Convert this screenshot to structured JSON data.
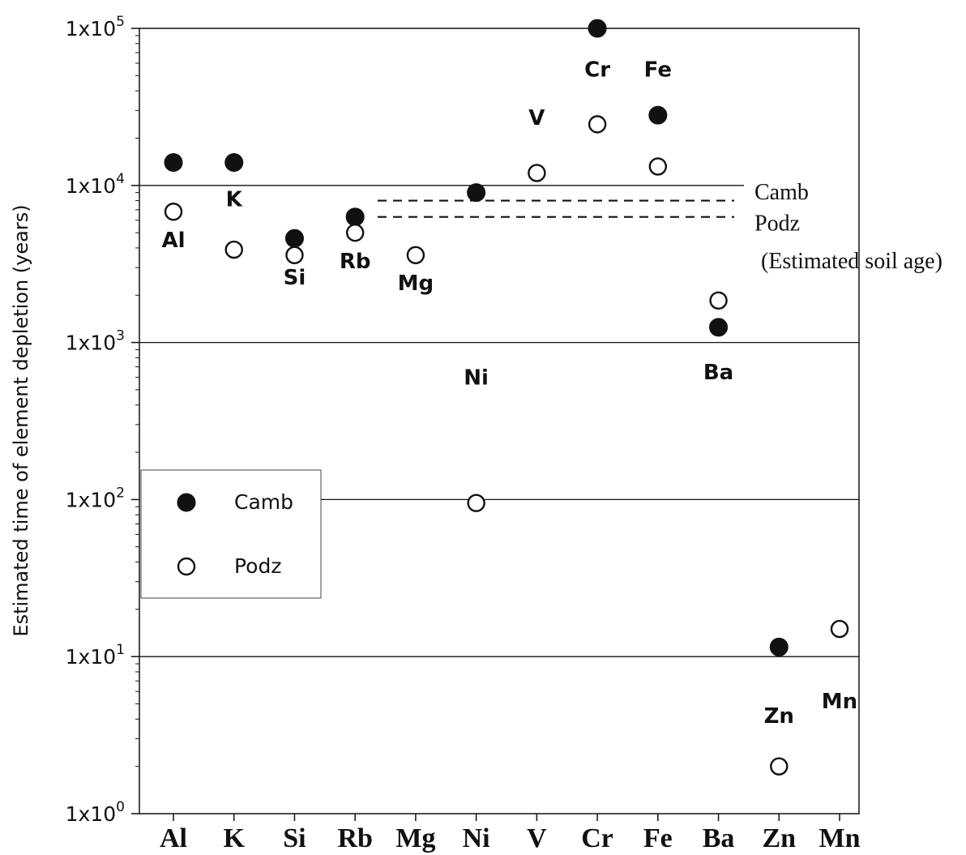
{
  "chart_data": {
    "type": "scatter",
    "ylabel": "Estimated time of element depletion (years)",
    "xlabel": "",
    "yscale": "log",
    "ylim": [
      1,
      100000
    ],
    "yticks": [
      {
        "value": 1,
        "base": "1x10",
        "exp": "0"
      },
      {
        "value": 10,
        "base": "1x10",
        "exp": "1"
      },
      {
        "value": 100,
        "base": "1x10",
        "exp": "2"
      },
      {
        "value": 1000,
        "base": "1x10",
        "exp": "3"
      },
      {
        "value": 10000,
        "base": "1x10",
        "exp": "4"
      },
      {
        "value": 100000,
        "base": "1x10",
        "exp": "5"
      }
    ],
    "categories": [
      "Al",
      "K",
      "Si",
      "Rb",
      "Mg",
      "Ni",
      "V",
      "Cr",
      "Fe",
      "Ba",
      "Zn",
      "Mn"
    ],
    "series": [
      {
        "name": "Camb",
        "marker": "filled",
        "values": [
          14000,
          14000,
          4600,
          6300,
          null,
          9000,
          null,
          100000,
          28000,
          1250,
          11.5,
          null
        ]
      },
      {
        "name": "Podz",
        "marker": "open",
        "values": [
          6800,
          3900,
          3600,
          5000,
          3600,
          95,
          12000,
          24500,
          13200,
          1850,
          2,
          15
        ]
      }
    ],
    "point_labels": [
      {
        "text": "Al",
        "category": "Al",
        "value": 4500
      },
      {
        "text": "K",
        "category": "K",
        "value": 8200
      },
      {
        "text": "Si",
        "category": "Si",
        "value": 2600
      },
      {
        "text": "Rb",
        "category": "Rb",
        "value": 3300
      },
      {
        "text": "Mg",
        "category": "Mg",
        "value": 2400
      },
      {
        "text": "Ni",
        "category": "Ni",
        "value": 600
      },
      {
        "text": "V",
        "category": "V",
        "value": 27000
      },
      {
        "text": "Cr",
        "category": "Cr",
        "value": 55000
      },
      {
        "text": "Fe",
        "category": "Fe",
        "value": 55000
      },
      {
        "text": "Ba",
        "category": "Ba",
        "value": 650
      },
      {
        "text": "Zn",
        "category": "Zn",
        "value": 4.2
      },
      {
        "text": "Mn",
        "category": "Mn",
        "value": 5.2
      }
    ],
    "reference_lines": [
      {
        "label": "Camb",
        "value": 8000,
        "style": "dashed"
      },
      {
        "label": "Podz",
        "value": 6300,
        "style": "dashed"
      }
    ],
    "reference_note": "(Estimated soil age)",
    "grid": "horizontal at major ticks",
    "legend": {
      "placement": "middle-left",
      "entries": [
        {
          "label": "Camb",
          "marker": "filled"
        },
        {
          "label": "Podz",
          "marker": "open"
        }
      ]
    }
  }
}
